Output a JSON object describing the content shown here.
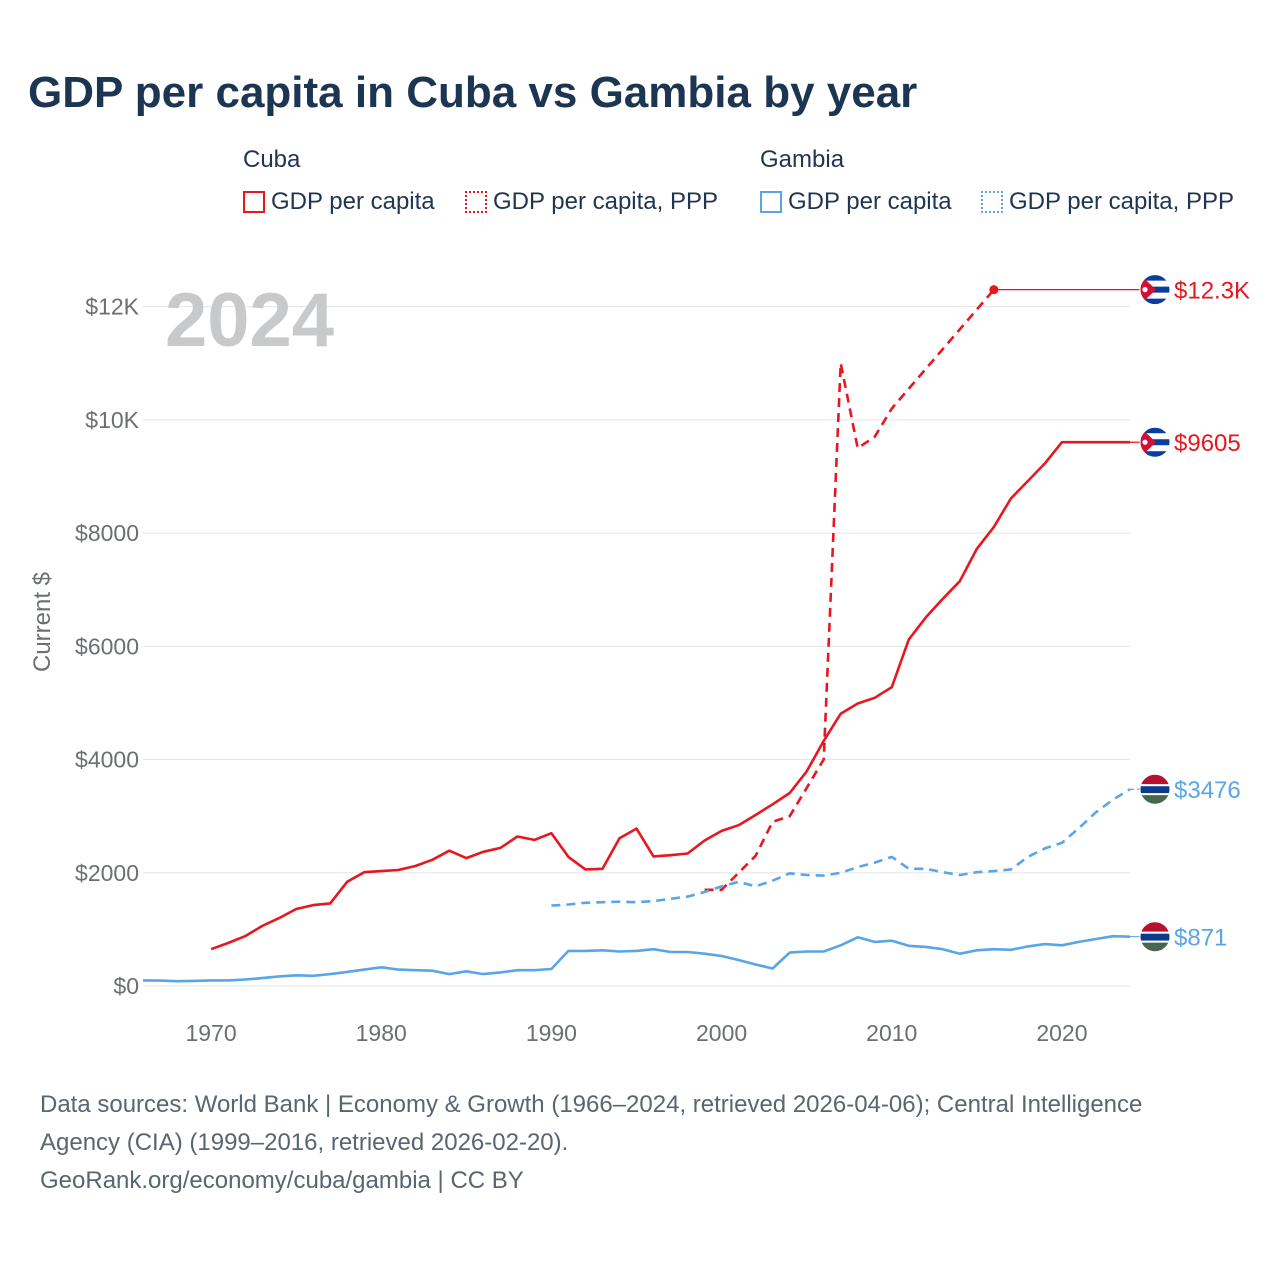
{
  "title": "GDP per capita in Cuba vs Gambia by year",
  "legend": {
    "groups": [
      {
        "name": "Cuba",
        "color": "#e8171f",
        "items": [
          {
            "label": "GDP per capita",
            "style": "solid"
          },
          {
            "label": "GDP per capita, PPP",
            "style": "dotted"
          }
        ]
      },
      {
        "name": "Gambia",
        "color": "#5aa5e6",
        "items": [
          {
            "label": "GDP per capita",
            "style": "solid"
          },
          {
            "label": "GDP per capita, PPP",
            "style": "dotted"
          }
        ]
      }
    ]
  },
  "footer": {
    "sources_line1": "Data sources: World Bank | Economy & Growth (1966–2024, retrieved 2026-04-06); Central Intelligence",
    "sources_line2": "Agency (CIA) (1999–2016, retrieved 2026-02-20).",
    "credit": "GeoRank.org/economy/cuba/gambia | CC BY"
  },
  "chart_data": {
    "type": "line",
    "title": "GDP per capita in Cuba vs Gambia by year",
    "ylabel": "Current $",
    "xlabel": "",
    "year_label": "2024",
    "xlim": [
      1966,
      2024
    ],
    "ylim": [
      -300,
      13000
    ],
    "x_ticks": [
      1970,
      1980,
      1990,
      2000,
      2010,
      2020
    ],
    "x_tick_labels": [
      "1970",
      "1980",
      "1990",
      "2000",
      "2010",
      "2020"
    ],
    "y_ticks": [
      0,
      2000,
      4000,
      6000,
      8000,
      10000,
      12000
    ],
    "y_tick_labels": [
      "$0",
      "$2000",
      "$4000",
      "$6000",
      "$8000",
      "$10K",
      "$12K"
    ],
    "series": [
      {
        "name": "Cuba GDP per capita",
        "country": "Cuba",
        "color": "#e8171f",
        "dash": "solid",
        "end_label": "$9605",
        "end_value": 9605,
        "end_year": 2024,
        "points": [
          [
            1970,
            650
          ],
          [
            1971,
            760
          ],
          [
            1972,
            880
          ],
          [
            1973,
            1060
          ],
          [
            1974,
            1200
          ],
          [
            1975,
            1360
          ],
          [
            1976,
            1430
          ],
          [
            1977,
            1460
          ],
          [
            1978,
            1840
          ],
          [
            1979,
            2010
          ],
          [
            1980,
            2030
          ],
          [
            1981,
            2050
          ],
          [
            1982,
            2120
          ],
          [
            1983,
            2230
          ],
          [
            1984,
            2390
          ],
          [
            1985,
            2260
          ],
          [
            1986,
            2370
          ],
          [
            1987,
            2440
          ],
          [
            1988,
            2640
          ],
          [
            1989,
            2580
          ],
          [
            1990,
            2700
          ],
          [
            1991,
            2280
          ],
          [
            1992,
            2060
          ],
          [
            1993,
            2070
          ],
          [
            1994,
            2610
          ],
          [
            1995,
            2780
          ],
          [
            1996,
            2290
          ],
          [
            1997,
            2310
          ],
          [
            1998,
            2340
          ],
          [
            1999,
            2570
          ],
          [
            2000,
            2740
          ],
          [
            2001,
            2840
          ],
          [
            2002,
            3020
          ],
          [
            2003,
            3210
          ],
          [
            2004,
            3410
          ],
          [
            2005,
            3790
          ],
          [
            2006,
            4330
          ],
          [
            2007,
            4810
          ],
          [
            2008,
            4990
          ],
          [
            2009,
            5090
          ],
          [
            2010,
            5280
          ],
          [
            2011,
            6120
          ],
          [
            2012,
            6510
          ],
          [
            2013,
            6840
          ],
          [
            2014,
            7150
          ],
          [
            2015,
            7720
          ],
          [
            2016,
            8110
          ],
          [
            2017,
            8610
          ],
          [
            2018,
            8920
          ],
          [
            2019,
            9230
          ],
          [
            2020,
            9605
          ],
          [
            2024,
            9605
          ]
        ]
      },
      {
        "name": "Cuba GDP per capita, PPP",
        "country": "Cuba",
        "color": "#e8171f",
        "dash": "dashed",
        "end_label": "$12.3K",
        "end_value": 12300,
        "end_year": 2024,
        "last_data_year": 2016,
        "points": [
          [
            1999,
            1700
          ],
          [
            2000,
            1700
          ],
          [
            2001,
            2000
          ],
          [
            2002,
            2300
          ],
          [
            2003,
            2900
          ],
          [
            2004,
            3000
          ],
          [
            2005,
            3500
          ],
          [
            2006,
            4000
          ],
          [
            2007,
            11000
          ],
          [
            2008,
            9500
          ],
          [
            2009,
            9700
          ],
          [
            2010,
            10200
          ],
          [
            2016,
            12300
          ],
          [
            2024,
            12300
          ]
        ]
      },
      {
        "name": "Gambia GDP per capita",
        "country": "Gambia",
        "color": "#5aa5e6",
        "dash": "solid",
        "end_label": "$871",
        "end_value": 871,
        "end_year": 2024,
        "points": [
          [
            1966,
            100
          ],
          [
            1967,
            95
          ],
          [
            1968,
            85
          ],
          [
            1969,
            90
          ],
          [
            1970,
            100
          ],
          [
            1971,
            100
          ],
          [
            1972,
            115
          ],
          [
            1973,
            140
          ],
          [
            1974,
            170
          ],
          [
            1975,
            190
          ],
          [
            1976,
            180
          ],
          [
            1977,
            210
          ],
          [
            1978,
            250
          ],
          [
            1979,
            290
          ],
          [
            1980,
            330
          ],
          [
            1981,
            290
          ],
          [
            1982,
            280
          ],
          [
            1983,
            270
          ],
          [
            1984,
            210
          ],
          [
            1985,
            260
          ],
          [
            1986,
            210
          ],
          [
            1987,
            240
          ],
          [
            1988,
            280
          ],
          [
            1989,
            280
          ],
          [
            1990,
            300
          ],
          [
            1991,
            620
          ],
          [
            1992,
            620
          ],
          [
            1993,
            630
          ],
          [
            1994,
            610
          ],
          [
            1995,
            620
          ],
          [
            1996,
            650
          ],
          [
            1997,
            600
          ],
          [
            1998,
            600
          ],
          [
            1999,
            570
          ],
          [
            2000,
            530
          ],
          [
            2001,
            460
          ],
          [
            2002,
            380
          ],
          [
            2003,
            310
          ],
          [
            2004,
            590
          ],
          [
            2005,
            610
          ],
          [
            2006,
            610
          ],
          [
            2007,
            720
          ],
          [
            2008,
            860
          ],
          [
            2009,
            780
          ],
          [
            2010,
            800
          ],
          [
            2011,
            710
          ],
          [
            2012,
            690
          ],
          [
            2013,
            650
          ],
          [
            2014,
            570
          ],
          [
            2015,
            630
          ],
          [
            2016,
            650
          ],
          [
            2017,
            640
          ],
          [
            2018,
            700
          ],
          [
            2019,
            740
          ],
          [
            2020,
            720
          ],
          [
            2021,
            780
          ],
          [
            2022,
            830
          ],
          [
            2023,
            880
          ],
          [
            2024,
            871
          ]
        ]
      },
      {
        "name": "Gambia GDP per capita, PPP",
        "country": "Gambia",
        "color": "#5aa5e6",
        "dash": "dashed",
        "end_label": "$3476",
        "end_value": 3476,
        "end_year": 2024,
        "points": [
          [
            1990,
            1420
          ],
          [
            1991,
            1440
          ],
          [
            1992,
            1470
          ],
          [
            1993,
            1480
          ],
          [
            1994,
            1490
          ],
          [
            1995,
            1480
          ],
          [
            1996,
            1500
          ],
          [
            1997,
            1540
          ],
          [
            1998,
            1580
          ],
          [
            1999,
            1660
          ],
          [
            2000,
            1760
          ],
          [
            2001,
            1840
          ],
          [
            2002,
            1760
          ],
          [
            2003,
            1860
          ],
          [
            2004,
            1990
          ],
          [
            2005,
            1960
          ],
          [
            2006,
            1950
          ],
          [
            2007,
            2000
          ],
          [
            2008,
            2100
          ],
          [
            2009,
            2180
          ],
          [
            2010,
            2280
          ],
          [
            2011,
            2070
          ],
          [
            2012,
            2070
          ],
          [
            2013,
            2010
          ],
          [
            2014,
            1960
          ],
          [
            2015,
            2010
          ],
          [
            2016,
            2030
          ],
          [
            2017,
            2060
          ],
          [
            2018,
            2280
          ],
          [
            2019,
            2430
          ],
          [
            2020,
            2530
          ],
          [
            2021,
            2790
          ],
          [
            2022,
            3070
          ],
          [
            2023,
            3290
          ],
          [
            2024,
            3476
          ]
        ]
      }
    ]
  }
}
